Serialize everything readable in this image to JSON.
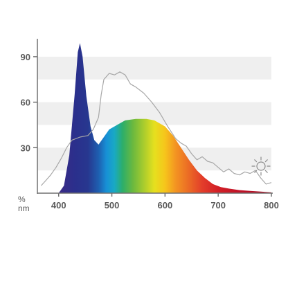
{
  "chart_data": {
    "type": "area",
    "title": "",
    "xlabel": "nm",
    "ylabel": "%",
    "xlim": [
      360,
      800
    ],
    "ylim": [
      0,
      100
    ],
    "x_ticks": [
      400,
      500,
      600,
      700,
      800
    ],
    "y_ticks": [
      30,
      60,
      90
    ],
    "grid": "alternating horizontal bands",
    "legend": "none",
    "series": [
      {
        "style": "spectral gradient fill",
        "points": [
          [
            400,
            0
          ],
          [
            410,
            5
          ],
          [
            420,
            25
          ],
          [
            430,
            65
          ],
          [
            436,
            93
          ],
          [
            440,
            99
          ],
          [
            445,
            90
          ],
          [
            452,
            64
          ],
          [
            460,
            44
          ],
          [
            467,
            35
          ],
          [
            475,
            32
          ],
          [
            485,
            37
          ],
          [
            495,
            42
          ],
          [
            510,
            45
          ],
          [
            525,
            48
          ],
          [
            545,
            49
          ],
          [
            565,
            49
          ],
          [
            580,
            48
          ],
          [
            600,
            44
          ],
          [
            615,
            38
          ],
          [
            630,
            30
          ],
          [
            645,
            22
          ],
          [
            660,
            15
          ],
          [
            675,
            10
          ],
          [
            690,
            6
          ],
          [
            705,
            4
          ],
          [
            720,
            3
          ],
          [
            740,
            2
          ],
          [
            760,
            1.5
          ],
          [
            780,
            1
          ],
          [
            800,
            0.5
          ]
        ]
      },
      {
        "style": "grey outline",
        "points": [
          [
            367,
            5
          ],
          [
            375,
            8
          ],
          [
            385,
            12
          ],
          [
            395,
            17
          ],
          [
            405,
            23
          ],
          [
            415,
            30
          ],
          [
            425,
            35
          ],
          [
            440,
            37
          ],
          [
            455,
            38
          ],
          [
            465,
            42
          ],
          [
            475,
            50
          ],
          [
            480,
            65
          ],
          [
            485,
            75
          ],
          [
            495,
            79
          ],
          [
            505,
            78
          ],
          [
            515,
            80
          ],
          [
            525,
            78
          ],
          [
            535,
            72
          ],
          [
            545,
            70
          ],
          [
            560,
            66
          ],
          [
            575,
            60
          ],
          [
            590,
            53
          ],
          [
            605,
            44
          ],
          [
            620,
            36
          ],
          [
            630,
            33
          ],
          [
            640,
            31
          ],
          [
            650,
            26
          ],
          [
            660,
            22
          ],
          [
            670,
            24
          ],
          [
            680,
            21
          ],
          [
            690,
            20
          ],
          [
            700,
            17
          ],
          [
            710,
            14
          ],
          [
            720,
            16
          ],
          [
            730,
            13
          ],
          [
            740,
            12
          ],
          [
            750,
            14
          ],
          [
            760,
            13
          ],
          [
            770,
            15
          ],
          [
            780,
            10
          ],
          [
            790,
            6
          ],
          [
            800,
            7
          ]
        ]
      }
    ]
  },
  "icons": {
    "sun": "sun-icon"
  },
  "colors": {
    "band": "#efefef",
    "outline": "#a7a7a7",
    "axis": "#707070",
    "text": "#5a5a5a"
  }
}
